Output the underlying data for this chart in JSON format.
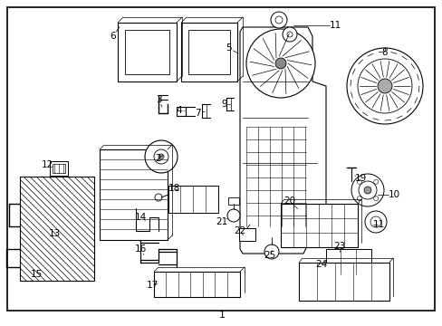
{
  "bg": "#ffffff",
  "lc": "#000000",
  "tc": "#000000",
  "fw": 4.89,
  "fh": 3.6,
  "dpi": 100
}
